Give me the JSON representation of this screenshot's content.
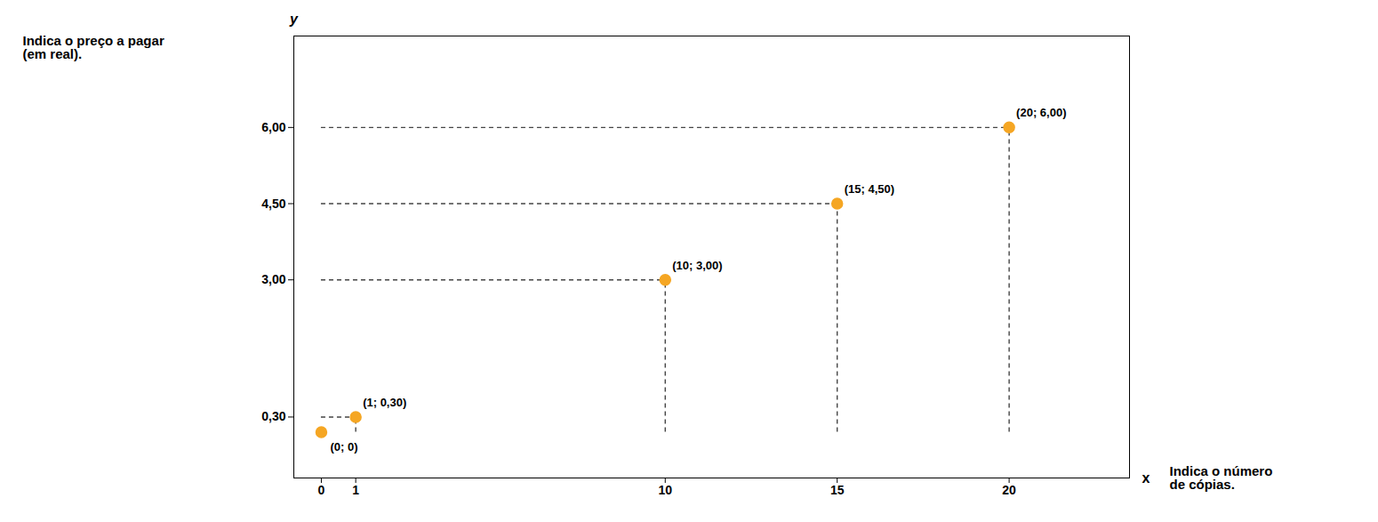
{
  "chart_data": {
    "type": "scatter",
    "x": [
      0,
      1,
      10,
      15,
      20
    ],
    "values": [
      0,
      0.3,
      3.0,
      4.5,
      6.0
    ],
    "color": "#F5A623",
    "xlabel": "x",
    "ylabel": "y",
    "xlim": [
      -0.8,
      23.5
    ],
    "ylim": [
      -0.9,
      7.8
    ],
    "xticks": [
      0,
      1,
      10,
      15,
      20
    ],
    "yticks": [
      {
        "value": 0.3,
        "label": "0,30"
      },
      {
        "value": 3.0,
        "label": "3,00"
      },
      {
        "value": 4.5,
        "label": "4,50"
      },
      {
        "value": 6.0,
        "label": "6,00"
      }
    ],
    "grid": false,
    "annotations": [
      {
        "text": "(0; 0)",
        "x": 0,
        "y": 0
      },
      {
        "text": "(1; 0,30)",
        "x": 1,
        "y": 0.3
      },
      {
        "text": "(10; 3,00)",
        "x": 10,
        "y": 3.0
      },
      {
        "text": "(15; 4,50)",
        "x": 15,
        "y": 4.5
      },
      {
        "text": "(20; 6,00)",
        "x": 20,
        "y": 6.0
      },
      {
        "text": "Indica o preço a pagar\n(em real).",
        "axis": "y"
      },
      {
        "text": "Indica o número\nde cópias.",
        "axis": "x"
      }
    ]
  }
}
